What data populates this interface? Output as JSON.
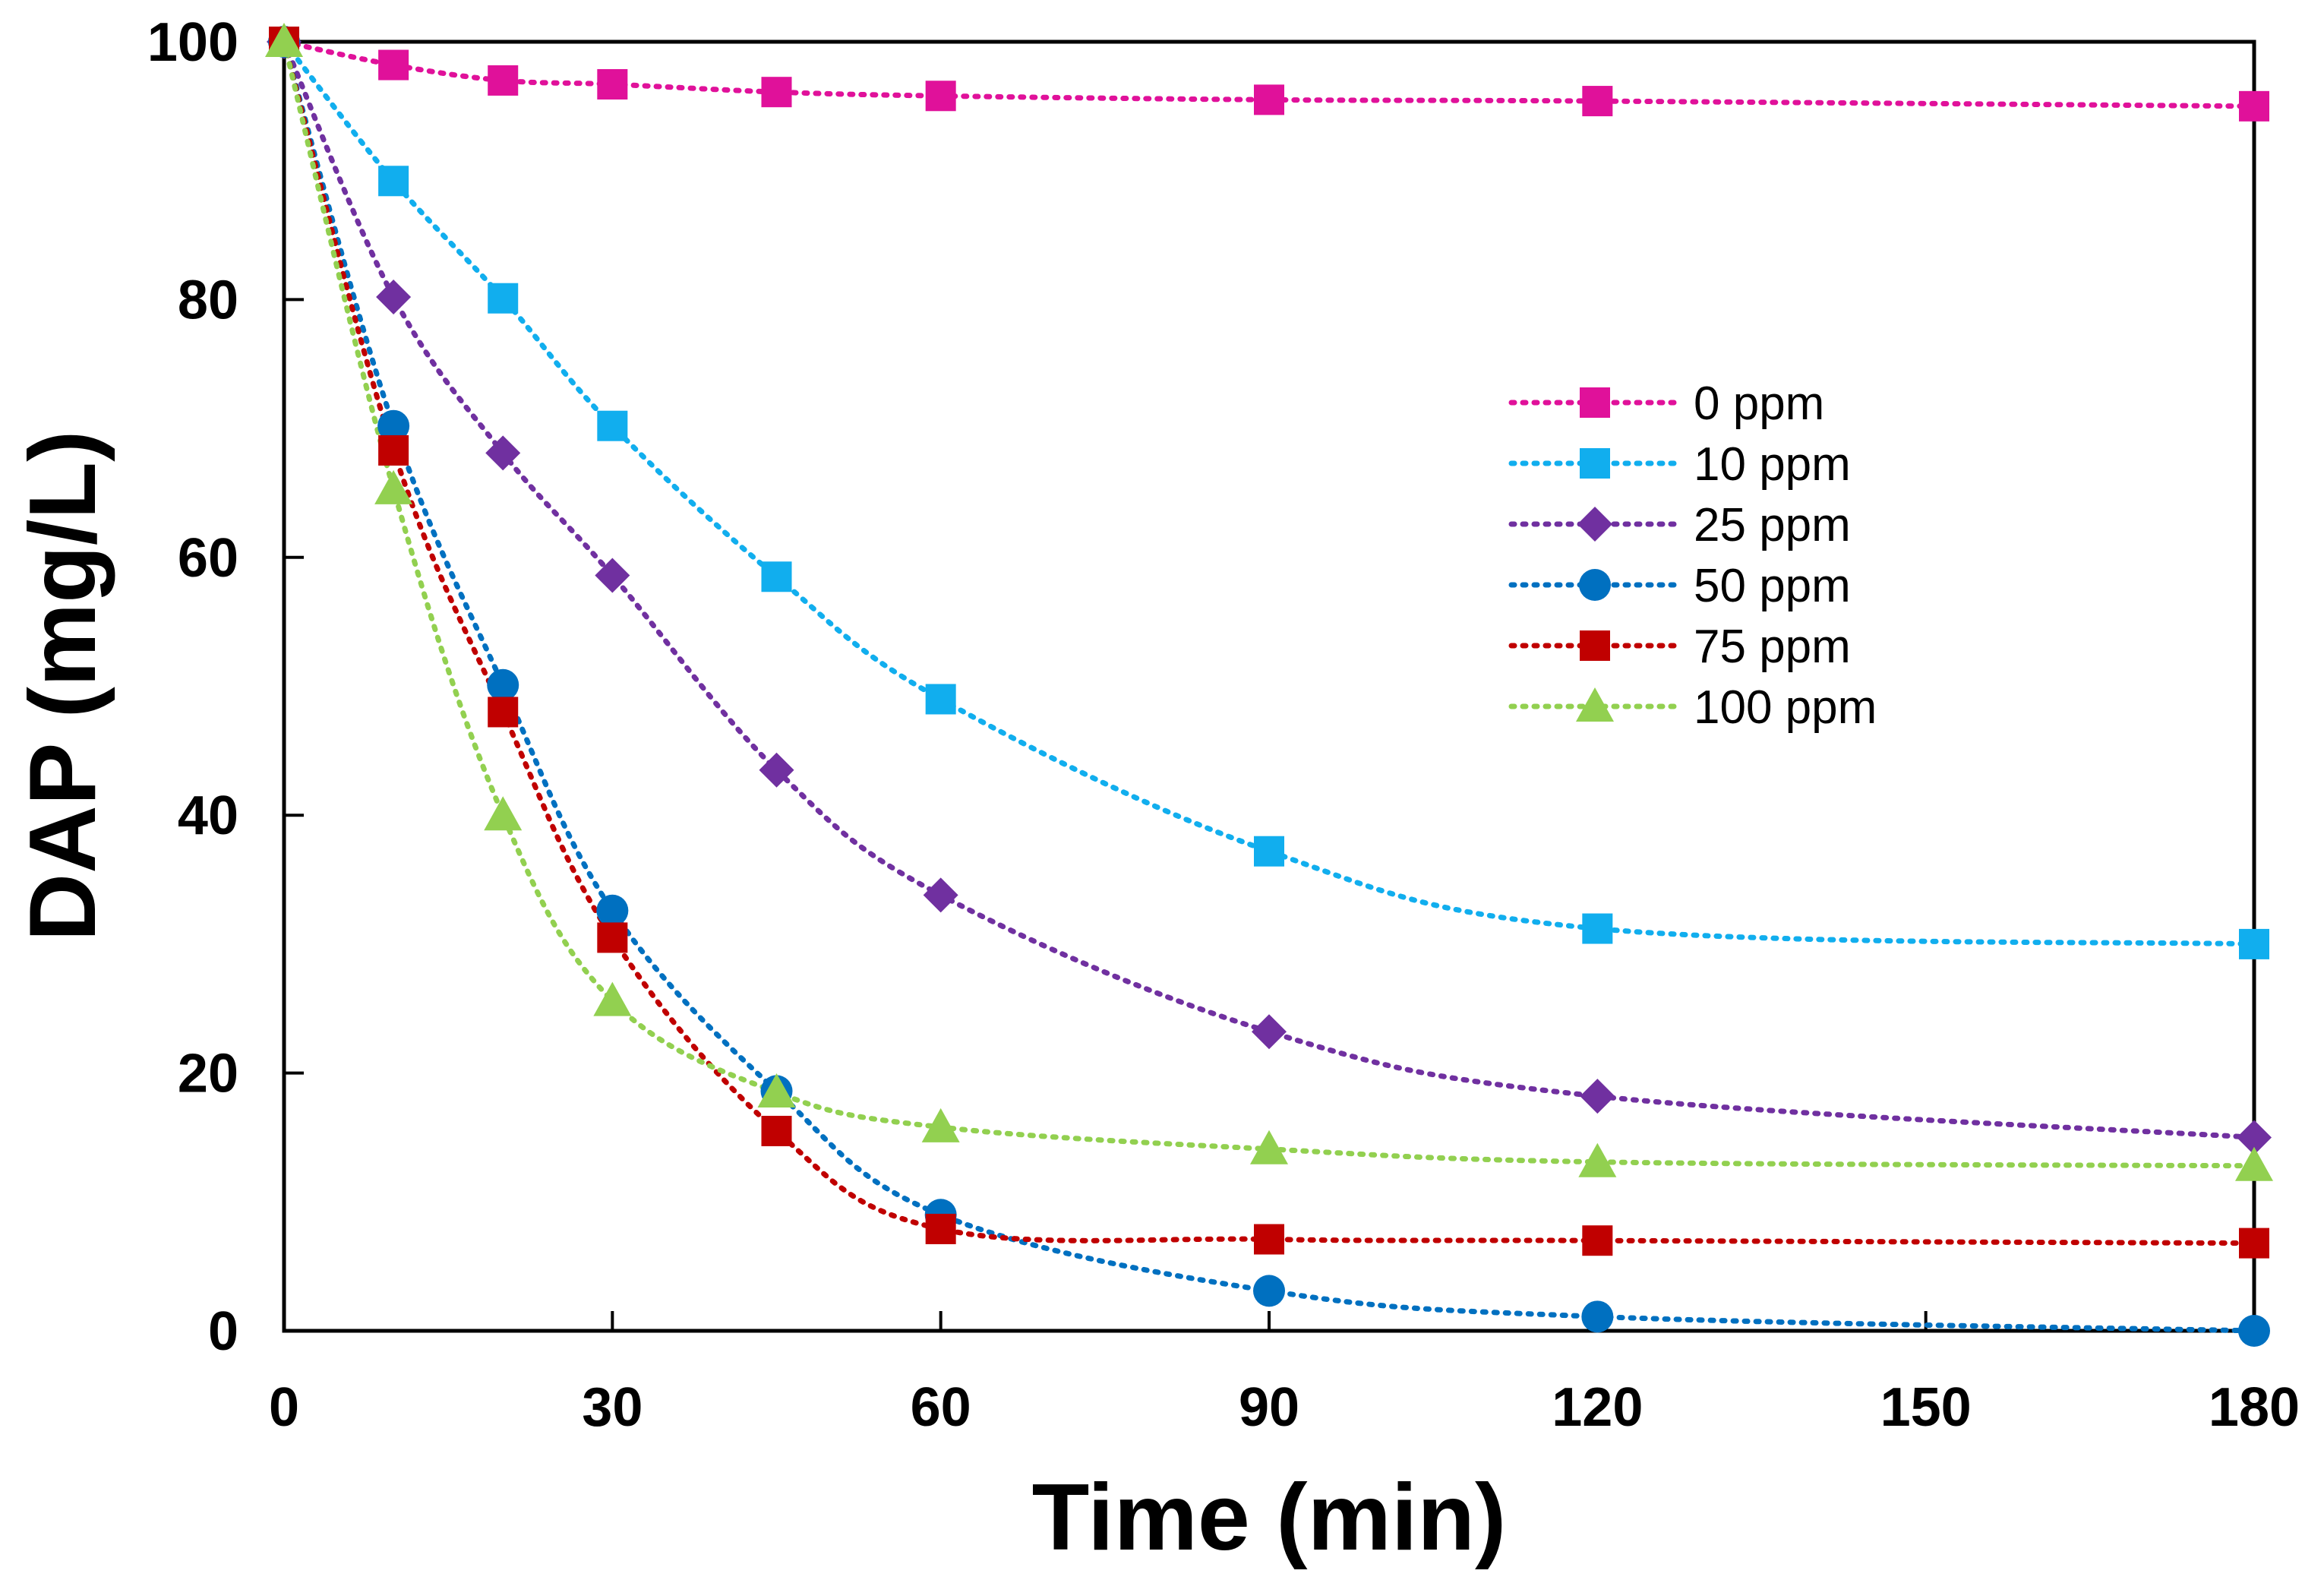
{
  "chart_data": {
    "type": "line",
    "title": "",
    "xlabel": "Time (min)",
    "ylabel": "DAP (mg/L)",
    "xlim": [
      0,
      180
    ],
    "ylim": [
      0,
      100
    ],
    "xticks": [
      0,
      30,
      60,
      90,
      120,
      150,
      180
    ],
    "yticks": [
      0,
      20,
      40,
      60,
      80,
      100
    ],
    "grid": false,
    "legend_position": "center-right",
    "line_style": "dotted",
    "series": [
      {
        "name": "0 ppm",
        "color": "#E0119A",
        "marker": "square",
        "x": [
          0,
          10,
          20,
          30,
          45,
          60,
          90,
          120,
          180
        ],
        "y": [
          100,
          98.2,
          97.0,
          96.7,
          96.1,
          95.8,
          95.5,
          95.4,
          95.0
        ]
      },
      {
        "name": "10 ppm",
        "color": "#11AEEE",
        "marker": "square",
        "x": [
          0,
          10,
          20,
          30,
          45,
          60,
          90,
          120,
          180
        ],
        "y": [
          100,
          89.2,
          80.1,
          70.2,
          58.5,
          49.0,
          37.2,
          31.2,
          30.0
        ]
      },
      {
        "name": "25 ppm",
        "color": "#7030A0",
        "marker": "diamond",
        "x": [
          0,
          10,
          20,
          30,
          45,
          60,
          90,
          120,
          180
        ],
        "y": [
          100,
          80.2,
          68.1,
          58.6,
          43.5,
          33.8,
          23.2,
          18.2,
          15.0
        ]
      },
      {
        "name": "50 ppm",
        "color": "#0070C0",
        "marker": "circle",
        "x": [
          0,
          10,
          20,
          30,
          45,
          60,
          90,
          120,
          180
        ],
        "y": [
          100,
          70.2,
          50.1,
          32.6,
          18.6,
          9.0,
          3.1,
          1.1,
          0.0
        ]
      },
      {
        "name": "75 ppm",
        "color": "#C00000",
        "marker": "square",
        "x": [
          0,
          10,
          20,
          30,
          45,
          60,
          90,
          120,
          180
        ],
        "y": [
          100,
          68.3,
          48.0,
          30.5,
          15.5,
          7.9,
          7.1,
          7.0,
          6.8
        ]
      },
      {
        "name": "100 ppm",
        "color": "#92D050",
        "marker": "triangle",
        "x": [
          0,
          10,
          20,
          30,
          45,
          60,
          90,
          120,
          180
        ],
        "y": [
          100,
          65.3,
          40.0,
          25.6,
          18.5,
          15.8,
          14.1,
          13.1,
          12.8
        ]
      }
    ]
  }
}
